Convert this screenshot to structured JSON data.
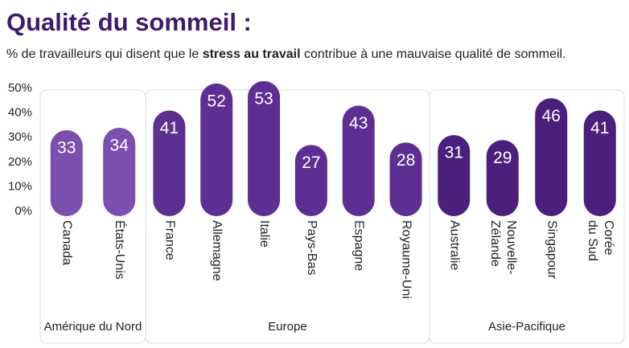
{
  "chart_data": {
    "type": "bar",
    "title": "Qualité du sommeil :",
    "subtitle": [
      "% de travailleurs qui disent que le ",
      "stress au travail",
      " contribue à une mauvaise qualité de sommeil."
    ],
    "ylim": [
      0,
      50
    ],
    "yticks": [
      {
        "value": 0,
        "label": "0%"
      },
      {
        "value": 10,
        "label": "10%"
      },
      {
        "value": 20,
        "label": "20%"
      },
      {
        "value": 30,
        "label": "30%"
      },
      {
        "value": 40,
        "label": "40%"
      },
      {
        "value": 50,
        "label": "50%"
      }
    ],
    "series": [
      {
        "name": "Amérique du Nord",
        "color": "#7a4fae",
        "categories": [
          "Canada",
          "États-Unis"
        ],
        "values": [
          33,
          34
        ]
      },
      {
        "name": "Europe",
        "color": "#5e2f92",
        "categories": [
          "France",
          "Allemagne",
          "Italie",
          "Pays-Bas",
          "Espagne",
          "Royaume-Uni"
        ],
        "values": [
          41,
          52,
          53,
          27,
          43,
          28
        ]
      },
      {
        "name": "Asie-Pacifique",
        "color": "#4b1f7c",
        "categories": [
          "Australie",
          "Nouvelle-\nZélande",
          "Singapour",
          "Corée\ndu Sud"
        ],
        "values": [
          31,
          29,
          46,
          41
        ]
      }
    ]
  }
}
